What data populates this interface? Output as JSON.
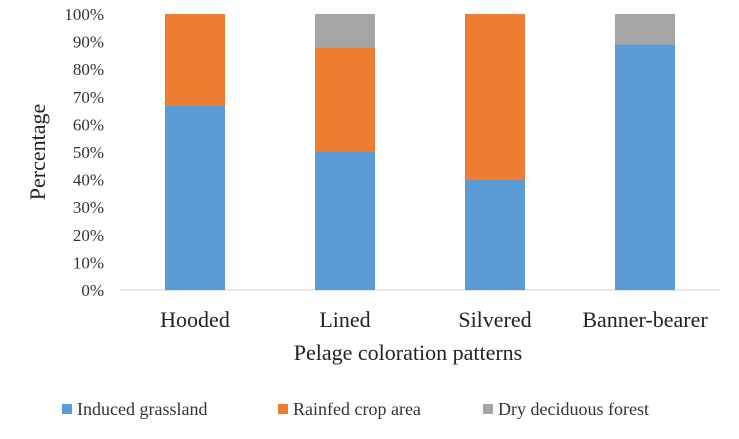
{
  "chart_data": {
    "type": "bar",
    "stacked": true,
    "categories": [
      "Hooded",
      "Lined",
      "Silvered",
      "Banner-bearer"
    ],
    "series": [
      {
        "name": "Induced grassland",
        "color": "#5b9bd5",
        "values": [
          67,
          50,
          40,
          89
        ]
      },
      {
        "name": "Rainfed crop area",
        "color": "#ed7d31",
        "values": [
          33,
          38,
          60,
          0
        ]
      },
      {
        "name": "Dry deciduous forest",
        "color": "#a5a5a5",
        "values": [
          0,
          12,
          0,
          11
        ]
      }
    ],
    "xlabel": "Pelage coloration patterns",
    "ylabel": "Percentage",
    "ylim": [
      0,
      100
    ],
    "yticks": [
      "0%",
      "10%",
      "20%",
      "30%",
      "40%",
      "50%",
      "60%",
      "70%",
      "80%",
      "90%",
      "100%"
    ],
    "grid": false,
    "legend_position": "bottom"
  }
}
